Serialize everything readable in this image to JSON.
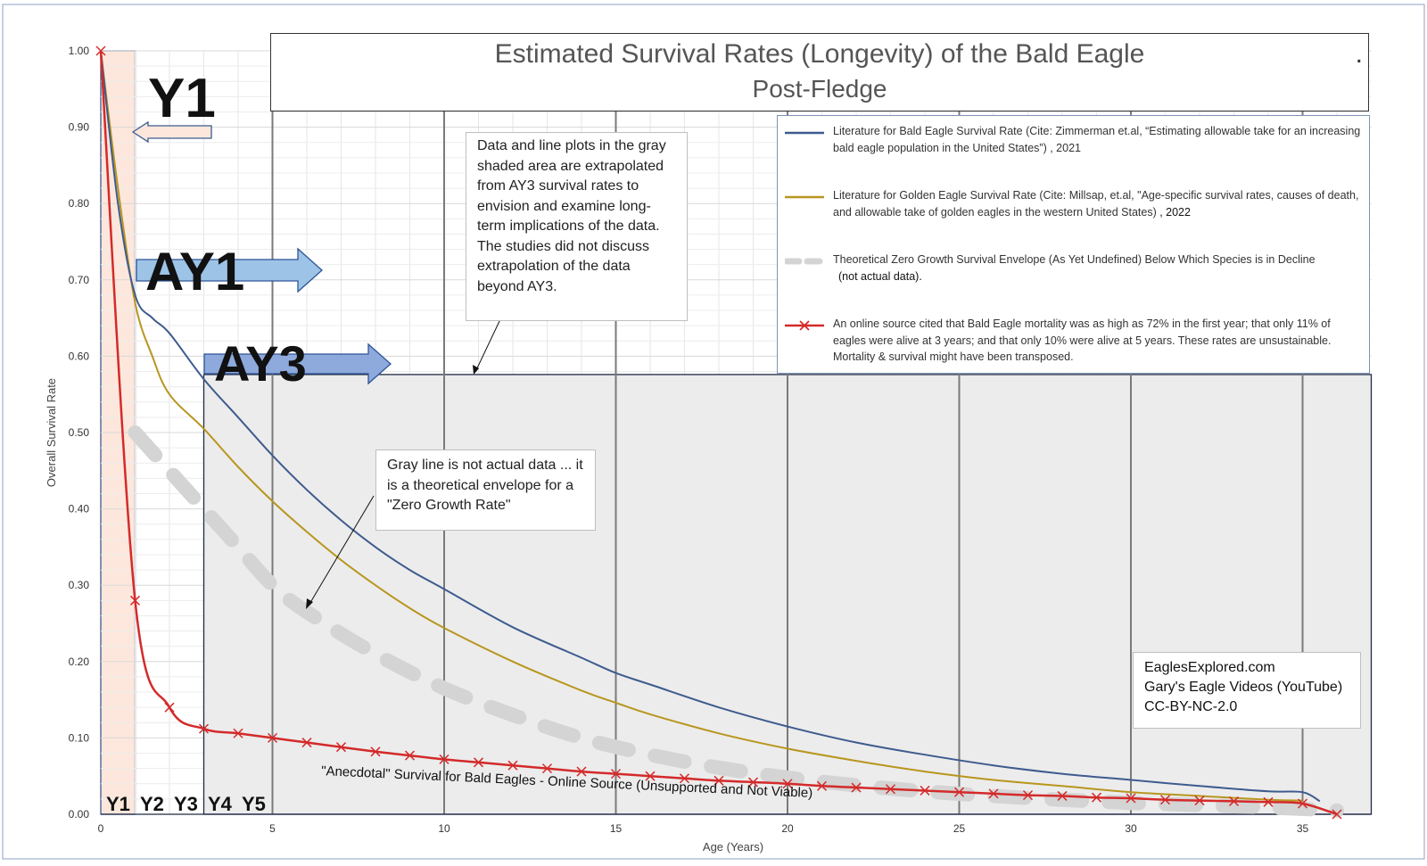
{
  "chart_data": {
    "type": "line",
    "title": "Estimated Survival Rates (Longevity) of the Bald Eagle",
    "subtitle": "Post-Fledge",
    "title_dot": ".",
    "xlabel": "Age (Years)",
    "ylabel": "Overall Survival Rate",
    "xlim": [
      0,
      37
    ],
    "ylim": [
      0,
      1
    ],
    "x_ticks": [
      "0",
      "5",
      "10",
      "15",
      "20",
      "25",
      "30",
      "35"
    ],
    "y_ticks": [
      "0.00",
      "0.10",
      "0.20",
      "0.30",
      "0.40",
      "0.50",
      "0.60",
      "0.70",
      "0.80",
      "0.90",
      "1.00"
    ],
    "grid": true,
    "legend_position": "top-right",
    "series": [
      {
        "name": "Literature for Bald Eagle Survival Rate (Cite: Zimmerman et.al, “Estimating allowable take for an increasing bald eagle population in the United States”) , 2021",
        "color": "#3e5b8e",
        "style": "solid",
        "x": [
          0,
          0.5,
          1,
          1.5,
          2,
          3,
          4,
          5,
          6,
          7,
          8,
          9,
          10,
          12,
          14,
          15,
          16,
          18,
          20,
          22,
          24,
          26,
          28,
          30,
          32,
          34,
          35,
          35.5
        ],
        "y": [
          1.0,
          0.8,
          0.68,
          0.65,
          0.63,
          0.57,
          0.52,
          0.47,
          0.425,
          0.385,
          0.35,
          0.32,
          0.295,
          0.245,
          0.205,
          0.185,
          0.17,
          0.14,
          0.115,
          0.094,
          0.078,
          0.064,
          0.053,
          0.045,
          0.037,
          0.03,
          0.029,
          0.017
        ]
      },
      {
        "name": "Literature for Golden Eagle Survival Rate (Cite: Millsap, et.al, \"Age-specific survival rates, causes of death, and allowable take of golden eagles in the western United States)",
        "name_suffix": " , 2022",
        "color": "#b8961e",
        "style": "solid",
        "x": [
          0,
          0.5,
          1,
          1.5,
          2,
          3,
          4,
          5,
          6,
          7,
          8,
          9,
          10,
          12,
          14,
          15,
          16,
          18,
          20,
          22,
          24,
          26,
          28,
          30,
          32,
          34,
          35
        ],
        "y": [
          1.0,
          0.82,
          0.67,
          0.6,
          0.55,
          0.505,
          0.455,
          0.41,
          0.37,
          0.333,
          0.3,
          0.27,
          0.244,
          0.2,
          0.162,
          0.146,
          0.131,
          0.106,
          0.086,
          0.07,
          0.056,
          0.045,
          0.037,
          0.029,
          0.024,
          0.019,
          0.018
        ]
      },
      {
        "name": "Theoretical Zero Growth Survival Envelope (As Yet Undefined) Below Which Species is in Decline",
        "name_sub": "(not actual data).",
        "color": "#d4d4d4",
        "style": "dashed",
        "x": [
          1,
          2,
          3,
          4,
          5,
          6,
          8,
          10,
          12,
          14,
          16,
          18,
          20,
          22,
          24,
          26,
          28,
          30,
          32,
          34,
          36
        ],
        "y": [
          0.5,
          0.45,
          0.4,
          0.35,
          0.3,
          0.265,
          0.21,
          0.165,
          0.13,
          0.1,
          0.078,
          0.061,
          0.048,
          0.038,
          0.03,
          0.024,
          0.019,
          0.015,
          0.012,
          0.009,
          0.005
        ]
      },
      {
        "name": "An online source cited that Bald Eagle mortality was as high as 72% in the first year; that only 11% of eagles were alive at 3 years; and that only 10% were alive at 5 years. These rates are unsustainable. Mortality & survival might have been transposed.",
        "color": "#d42a2a",
        "style": "solid-markers",
        "x": [
          0,
          1,
          2,
          3,
          4,
          5,
          6,
          7,
          8,
          9,
          10,
          11,
          12,
          13,
          14,
          15,
          16,
          17,
          18,
          19,
          20,
          21,
          22,
          23,
          24,
          25,
          26,
          27,
          28,
          29,
          30,
          31,
          32,
          33,
          34,
          35,
          36
        ],
        "y": [
          1.0,
          0.28,
          0.14,
          0.112,
          0.106,
          0.1,
          0.094,
          0.088,
          0.082,
          0.077,
          0.072,
          0.068,
          0.064,
          0.06,
          0.056,
          0.053,
          0.05,
          0.047,
          0.044,
          0.042,
          0.04,
          0.037,
          0.035,
          0.033,
          0.031,
          0.029,
          0.027,
          0.025,
          0.024,
          0.022,
          0.021,
          0.019,
          0.018,
          0.017,
          0.016,
          0.014,
          0.0
        ]
      }
    ],
    "annotations": {
      "y1_big": "Y1",
      "ay1": "AY1",
      "ay3": "AY3",
      "year_labels": [
        "Y1",
        "Y2",
        "Y3",
        "Y4",
        "Y5"
      ],
      "anecdotal": "\"Anecdotal\" Survival for Bald Eagles - Online Source (Unsupported and Not Viable)",
      "extrapolation_note": "Data and line plots in the gray shaded area are extrapolated from AY3 survival rates to envision and examine long-term implications of the data. The studies did not discuss extrapolation of the data beyond AY3.",
      "gray_line_note": "Gray line is not actual data ... it is a theoretical envelope for a \"Zero Growth Rate\"",
      "credit_1": "EaglesExplored.com",
      "credit_2": "Gary's Eagle Videos (YouTube)",
      "credit_3": "CC-BY-NC-2.0"
    }
  }
}
